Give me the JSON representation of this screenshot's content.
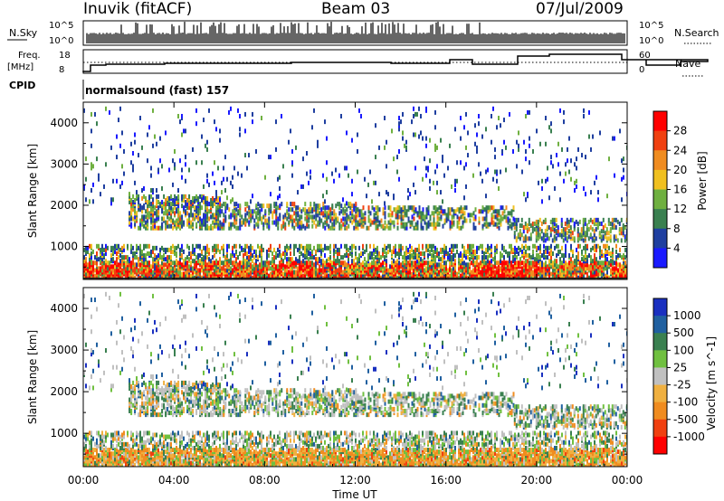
{
  "header": {
    "site": "Inuvik (fitACF)",
    "beam": "Beam 03",
    "date": "07/Jul/2009"
  },
  "top_panels": {
    "nsky_label": "N.Sky",
    "nsky_ticks": [
      "10^5",
      "10^0"
    ],
    "nsearch_label": "N.Search",
    "nsearch_ticks": [
      "10^5",
      "10^0"
    ],
    "freq_label_line1": "Freq.",
    "freq_label_line2": "[MHz]",
    "freq_ticks": [
      "18",
      "8"
    ],
    "nave_label": "Nave",
    "nave_ticks": [
      "60",
      "0"
    ],
    "cpid_label": "CPID",
    "cpid_value": "normalsound (fast) 157"
  },
  "colors": {
    "power": [
      "#1a1aff",
      "#1f3fa0",
      "#3a8050",
      "#6fb040",
      "#f0c020",
      "#f08c20",
      "#f04010",
      "#ff0000"
    ],
    "velocity": [
      "#ff0000",
      "#f04010",
      "#f08c20",
      "#f0b040",
      "#c0c0c0",
      "#70c040",
      "#3a8050",
      "#2060a0",
      "#1a30c0"
    ]
  },
  "chart_data": [
    {
      "type": "heatmap",
      "quantity": "Power",
      "ylabel": "Slant Range [km]",
      "yticks": [
        "1000",
        "2000",
        "3000",
        "4000"
      ],
      "ylim": [
        200,
        4500
      ],
      "colorbar_label": "Power [dB]",
      "colorbar_ticks": [
        "4",
        "8",
        "12",
        "16",
        "20",
        "24",
        "28"
      ],
      "colorbar_range": [
        0,
        32
      ]
    },
    {
      "type": "heatmap",
      "quantity": "Velocity",
      "ylabel": "Slant Range [km]",
      "yticks": [
        "1000",
        "2000",
        "3000",
        "4000"
      ],
      "ylim": [
        200,
        4500
      ],
      "colorbar_label": "Velocity [m s^-1]",
      "colorbar_ticks": [
        "1000",
        "500",
        "100",
        "25",
        "-25",
        "-100",
        "-500",
        "-1000"
      ]
    }
  ],
  "xaxis": {
    "label": "Time UT",
    "ticks": [
      "00:00",
      "04:00",
      "08:00",
      "12:00",
      "16:00",
      "20:00",
      "00:00"
    ]
  }
}
